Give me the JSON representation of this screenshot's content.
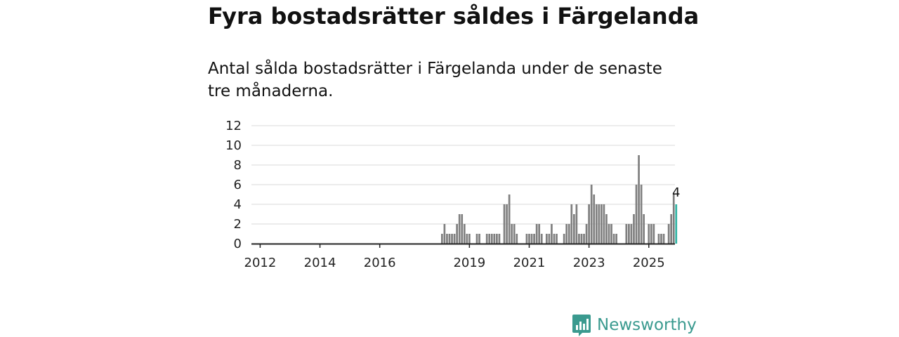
{
  "title": "Fyra bostadsrätter såldes i Färgelanda",
  "subtitle": "Antal sålda bostadsrätter i Färgelanda under de senaste tre månaderna.",
  "brand": {
    "name": "Newsworthy",
    "icon": "chart-bubble-icon",
    "color": "#3a9a8f"
  },
  "chart_data": {
    "type": "bar",
    "title": "",
    "xlabel": "",
    "ylabel": "",
    "ylim": [
      0,
      12
    ],
    "yticks": [
      0,
      2,
      4,
      6,
      8,
      10,
      12
    ],
    "xlim": [
      "2011-10",
      "2025-12"
    ],
    "xticks": [
      "2012",
      "2014",
      "2016",
      "2019",
      "2021",
      "2023",
      "2025"
    ],
    "grid": true,
    "legend": "none",
    "colors": {
      "bar": "#7f7f7f",
      "highlight": "#2fb3a3",
      "axis": "#222222",
      "grid": "#d9d9d9"
    },
    "highlight_label": "4",
    "series": [
      {
        "start": "2018-02",
        "values": [
          1,
          2,
          1,
          1,
          1,
          1,
          2,
          3,
          3,
          2,
          1,
          1,
          0,
          0,
          1,
          1,
          0,
          0,
          1,
          1,
          1,
          1,
          1,
          1,
          0,
          4,
          4,
          5,
          2,
          2,
          1,
          0,
          0,
          0,
          1,
          1,
          1,
          1,
          2,
          2,
          1,
          0,
          1,
          1,
          2,
          1,
          1,
          0,
          0,
          1,
          2,
          2,
          4,
          3,
          4,
          1,
          1,
          1,
          2,
          4,
          6,
          5,
          4,
          4,
          4,
          4,
          3,
          2,
          2,
          1,
          1,
          0,
          0,
          0,
          2,
          2,
          2,
          3,
          6,
          9,
          6,
          3,
          0,
          2,
          2,
          2,
          0,
          1,
          1,
          1,
          0,
          2,
          3,
          5,
          4
        ]
      }
    ]
  }
}
